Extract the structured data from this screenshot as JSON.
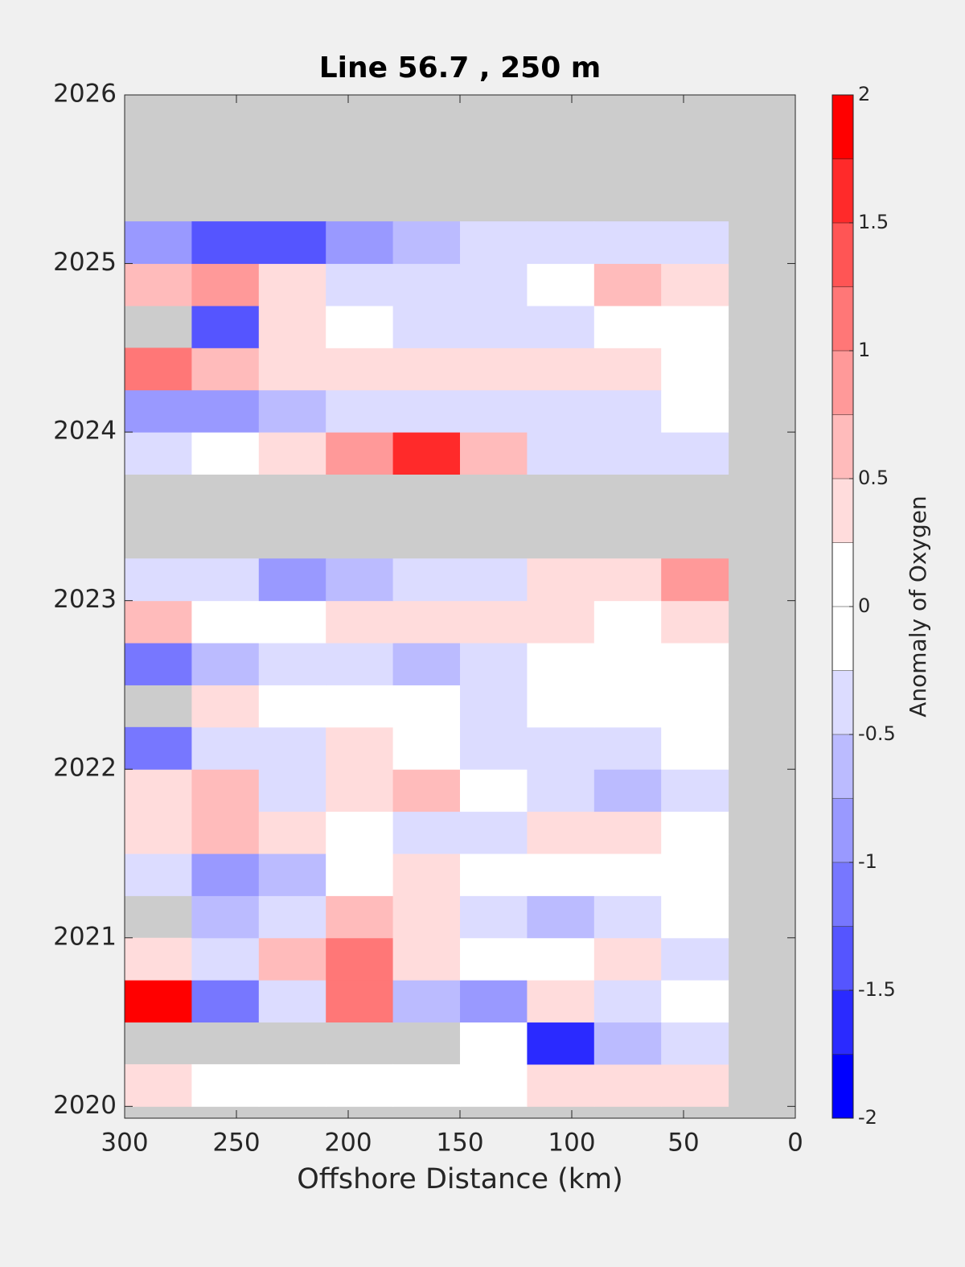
{
  "chart_data": {
    "type": "heatmap",
    "title": "Line 56.7 , 250 m",
    "x_label": "Offshore Distance (km)",
    "colorbar_label": "Anomaly of Oxygen",
    "xlim": [
      300,
      0
    ],
    "xticks": [
      300,
      250,
      200,
      150,
      100,
      50,
      0
    ],
    "ylim": [
      2019.93,
      2026
    ],
    "yticks": [
      2020,
      2021,
      2022,
      2023,
      2024,
      2025,
      2026
    ],
    "zlim": [
      -2,
      2
    ],
    "zticks": [
      -2,
      -1.5,
      -1,
      -0.5,
      0,
      0.5,
      1,
      1.5,
      2
    ],
    "colors": [
      "#0000ff",
      "#2a2aff",
      "#5555ff",
      "#7777ff",
      "#9999ff",
      "#bbbbff",
      "#dcdcff",
      "#ffffff",
      "#ffffff",
      "#ffdcdc",
      "#ffbbbb",
      "#ff9999",
      "#ff7777",
      "#ff5555",
      "#ff2a2a",
      "#ff0000"
    ],
    "missing_color": "#cccccc",
    "x": [
      285,
      255,
      225,
      195,
      165,
      135,
      105,
      75,
      45
    ],
    "y": [
      2020.125,
      2020.375,
      2020.625,
      2020.875,
      2021.125,
      2021.375,
      2021.625,
      2021.875,
      2022.125,
      2022.375,
      2022.625,
      2022.875,
      2023.125,
      2023.375,
      2023.625,
      2023.875,
      2024.125,
      2024.375,
      2024.625,
      2024.875,
      2025.125
    ],
    "z": [
      [
        0.3,
        0.1,
        0,
        0,
        0.1,
        0.1,
        0.3,
        0.3,
        0.3
      ],
      [
        null,
        null,
        null,
        null,
        null,
        0,
        -1.6,
        -0.6,
        -0.3
      ],
      [
        1.8,
        -1.2,
        -0.4,
        1.0,
        -0.6,
        -1.0,
        0.3,
        -0.3,
        0
      ],
      [
        0.3,
        -0.3,
        0.6,
        1.2,
        0.4,
        0.1,
        0,
        0.3,
        -0.3
      ],
      [
        null,
        -0.7,
        -0.3,
        0.6,
        0.4,
        -0.3,
        -0.6,
        -0.3,
        0
      ],
      [
        -0.3,
        -0.8,
        -0.6,
        0,
        0.4,
        0,
        0,
        0,
        0
      ],
      [
        0.4,
        0.5,
        0.3,
        0,
        -0.4,
        -0.3,
        0.3,
        0.3,
        0
      ],
      [
        0.4,
        0.6,
        -0.3,
        0.3,
        0.5,
        0,
        -0.5,
        -0.6,
        -0.4
      ],
      [
        -1.2,
        -0.5,
        -0.3,
        0.3,
        0,
        -0.5,
        -0.4,
        -0.5,
        0
      ],
      [
        null,
        0.3,
        0,
        0,
        0,
        -0.3,
        0,
        0,
        0
      ],
      [
        -1.2,
        -0.6,
        -0.3,
        -0.4,
        -0.7,
        -0.4,
        0,
        0,
        0
      ],
      [
        0.6,
        0,
        0,
        0.3,
        0.3,
        0.4,
        0.3,
        0,
        0.3
      ],
      [
        -0.3,
        -0.5,
        -0.8,
        -0.6,
        -0.5,
        -0.3,
        0.3,
        0.4,
        0.8
      ],
      [
        null,
        null,
        null,
        null,
        null,
        null,
        null,
        null,
        null
      ],
      [
        null,
        null,
        null,
        null,
        null,
        null,
        null,
        null,
        null
      ],
      [
        -0.4,
        0,
        0.3,
        0.8,
        1.6,
        0.6,
        -0.4,
        -0.5,
        -0.3
      ],
      [
        -1.0,
        -1.0,
        -0.7,
        -0.4,
        -0.3,
        -0.4,
        -0.3,
        -0.3,
        0
      ],
      [
        1.1,
        0.5,
        0.3,
        0.4,
        0.4,
        0.3,
        0.3,
        0.3,
        0
      ],
      [
        null,
        -1.4,
        0.3,
        0,
        -0.3,
        -0.5,
        -0.3,
        0,
        0
      ],
      [
        0.5,
        0.8,
        0.3,
        -0.3,
        -0.4,
        -0.3,
        0,
        0.5,
        0.4
      ],
      [
        -1.0,
        -1.3,
        -1.5,
        -1.0,
        -0.6,
        -0.4,
        -0.3,
        -0.3,
        -0.3
      ]
    ]
  }
}
